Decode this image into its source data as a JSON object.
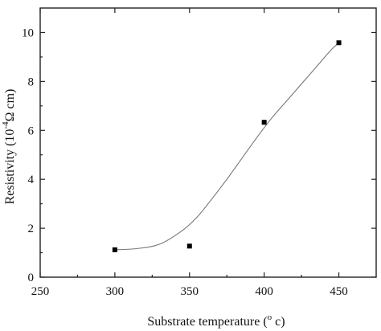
{
  "chart_data": {
    "type": "scatter",
    "title": "",
    "xlabel": "Substrate temperature (° c)",
    "xlabel_parts": {
      "prefix": "Substrate temperature (",
      "superscript": "o",
      "suffix": " c)"
    },
    "ylabel": "Resistivity (10⁻⁴Ω cm)",
    "ylabel_parts": {
      "prefix": "Resistivity (10",
      "superscript": "-4",
      "suffix": "Ω cm)"
    },
    "xlim": [
      250,
      475
    ],
    "ylim": [
      0,
      11
    ],
    "xticks": [
      250,
      300,
      350,
      400,
      450
    ],
    "yticks": [
      0,
      2,
      4,
      6,
      8,
      10
    ],
    "grid": false,
    "legend": "none",
    "marker": "square",
    "colors": {
      "points": "#000000",
      "curve": "#777777",
      "axes": "#222222"
    },
    "series": [
      {
        "x": [
          300,
          350,
          400,
          450
        ],
        "y": [
          1.12,
          1.27,
          6.33,
          9.58
        ]
      }
    ],
    "fit_curve": {
      "style": "smooth fit through points",
      "x": [
        300,
        315,
        330,
        345,
        355,
        365,
        375,
        385,
        395,
        405,
        415,
        425,
        435,
        445,
        450
      ],
      "y": [
        1.12,
        1.17,
        1.35,
        1.9,
        2.45,
        3.2,
        4.0,
        4.85,
        5.7,
        6.5,
        7.2,
        7.9,
        8.6,
        9.3,
        9.58
      ]
    }
  }
}
